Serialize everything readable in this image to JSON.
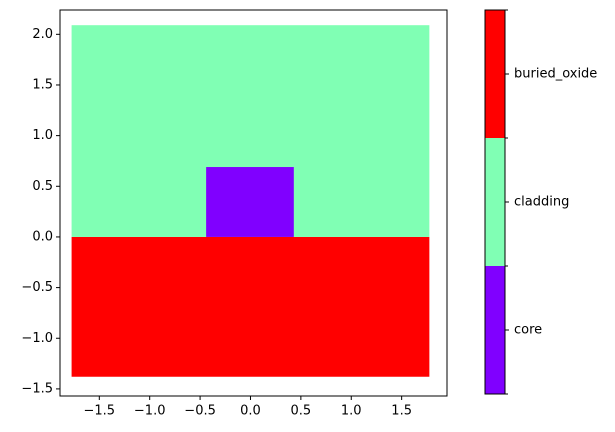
{
  "chart_data": {
    "type": "regions",
    "regions": [
      {
        "name": "core",
        "color": "#8000ff",
        "x": [
          -0.44,
          0.43
        ],
        "y": [
          0,
          0.69
        ]
      },
      {
        "name": "cladding",
        "color": "#80ffb4",
        "x": [
          -1.775,
          1.775
        ],
        "y": [
          0,
          2.09
        ]
      },
      {
        "name": "buried_oxide",
        "color": "#ff0000",
        "x": [
          -1.775,
          1.775
        ],
        "y": [
          -1.38,
          0
        ]
      }
    ],
    "xlim": [
      -1.89,
      1.95
    ],
    "ylim": [
      -1.57,
      2.24
    ],
    "xticks": [
      {
        "value": -1.5,
        "label": "−1.5"
      },
      {
        "value": -1.0,
        "label": "−1.0"
      },
      {
        "value": -0.5,
        "label": "−0.5"
      },
      {
        "value": 0,
        "label": "0.0"
      },
      0.5,
      {
        "value": 1.0,
        "label": "1.0"
      },
      1.5
    ],
    "yticks": [
      {
        "value": -1.5,
        "label": "−1.5"
      },
      {
        "value": -1.0,
        "label": "−1.0"
      },
      {
        "value": -0.5,
        "label": "−0.5"
      },
      {
        "value": 0,
        "label": "0.0"
      },
      0.5,
      {
        "value": 1.0,
        "label": "1.0"
      },
      1.5,
      {
        "value": 2.0,
        "label": "2.0"
      }
    ],
    "colorbar": true
  }
}
